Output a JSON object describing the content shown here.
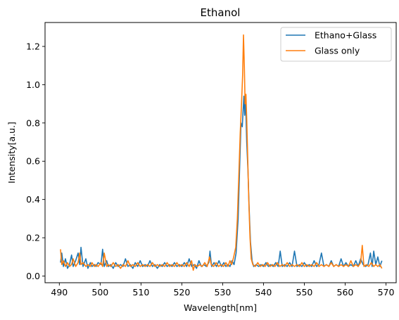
{
  "chart_data": {
    "type": "line",
    "title": "Ethanol",
    "xlabel": "Wavelength[nm]",
    "ylabel": "Intensity[a.u.]",
    "xlim": [
      486.5,
      572.5
    ],
    "ylim": [
      -0.035,
      1.325
    ],
    "xticks": [
      490,
      500,
      510,
      520,
      530,
      540,
      550,
      560,
      570
    ],
    "yticks": [
      0.0,
      0.2,
      0.4,
      0.6,
      0.8,
      1.0,
      1.2
    ],
    "xtick_labels": [
      "490",
      "500",
      "510",
      "520",
      "530",
      "540",
      "550",
      "560",
      "570"
    ],
    "ytick_labels": [
      "0.0",
      "0.2",
      "0.4",
      "0.6",
      "0.8",
      "1.0",
      "1.2"
    ],
    "legend_position": "top-right",
    "grid": false,
    "series": [
      {
        "name": "Ethano+Glass",
        "color": "#1f77b4",
        "points": [
          [
            490.3,
            0.07
          ],
          [
            490.6,
            0.12
          ],
          [
            491.0,
            0.05
          ],
          [
            491.5,
            0.09
          ],
          [
            492.0,
            0.04
          ],
          [
            492.5,
            0.06
          ],
          [
            493.0,
            0.11
          ],
          [
            493.4,
            0.05
          ],
          [
            494.0,
            0.08
          ],
          [
            494.6,
            0.12
          ],
          [
            495.0,
            0.06
          ],
          [
            495.3,
            0.15
          ],
          [
            495.8,
            0.05
          ],
          [
            496.5,
            0.09
          ],
          [
            497.0,
            0.04
          ],
          [
            497.6,
            0.07
          ],
          [
            498.0,
            0.05
          ],
          [
            498.6,
            0.06
          ],
          [
            499.0,
            0.05
          ],
          [
            499.5,
            0.07
          ],
          [
            500.2,
            0.06
          ],
          [
            500.6,
            0.14
          ],
          [
            501.0,
            0.05
          ],
          [
            501.6,
            0.08
          ],
          [
            502.0,
            0.05
          ],
          [
            502.6,
            0.06
          ],
          [
            503.2,
            0.04
          ],
          [
            503.8,
            0.07
          ],
          [
            504.4,
            0.05
          ],
          [
            505.0,
            0.06
          ],
          [
            505.6,
            0.05
          ],
          [
            506.2,
            0.09
          ],
          [
            506.8,
            0.05
          ],
          [
            507.4,
            0.06
          ],
          [
            508.0,
            0.04
          ],
          [
            508.6,
            0.07
          ],
          [
            509.2,
            0.05
          ],
          [
            509.8,
            0.08
          ],
          [
            510.4,
            0.05
          ],
          [
            511.0,
            0.06
          ],
          [
            511.6,
            0.05
          ],
          [
            512.2,
            0.08
          ],
          [
            512.8,
            0.05
          ],
          [
            513.4,
            0.06
          ],
          [
            514.0,
            0.04
          ],
          [
            514.6,
            0.06
          ],
          [
            515.2,
            0.05
          ],
          [
            515.8,
            0.07
          ],
          [
            516.4,
            0.05
          ],
          [
            517.0,
            0.06
          ],
          [
            517.6,
            0.05
          ],
          [
            518.2,
            0.07
          ],
          [
            518.8,
            0.05
          ],
          [
            519.4,
            0.06
          ],
          [
            520.0,
            0.05
          ],
          [
            520.6,
            0.07
          ],
          [
            521.2,
            0.05
          ],
          [
            521.8,
            0.09
          ],
          [
            522.4,
            0.05
          ],
          [
            523.0,
            0.06
          ],
          [
            523.6,
            0.04
          ],
          [
            524.2,
            0.08
          ],
          [
            524.8,
            0.05
          ],
          [
            525.4,
            0.06
          ],
          [
            526.0,
            0.05
          ],
          [
            526.6,
            0.07
          ],
          [
            526.9,
            0.13
          ],
          [
            527.3,
            0.05
          ],
          [
            527.9,
            0.07
          ],
          [
            528.5,
            0.05
          ],
          [
            529.1,
            0.08
          ],
          [
            529.7,
            0.05
          ],
          [
            530.3,
            0.07
          ],
          [
            530.8,
            0.05
          ],
          [
            531.3,
            0.06
          ],
          [
            531.8,
            0.05
          ],
          [
            532.3,
            0.08
          ],
          [
            532.8,
            0.06
          ],
          [
            533.3,
            0.12
          ],
          [
            533.8,
            0.3
          ],
          [
            534.2,
            0.6
          ],
          [
            534.5,
            0.8
          ],
          [
            534.8,
            0.78
          ],
          [
            535.0,
            0.86
          ],
          [
            535.2,
            0.94
          ],
          [
            535.4,
            0.84
          ],
          [
            535.6,
            0.93
          ],
          [
            535.9,
            0.7
          ],
          [
            536.2,
            0.55
          ],
          [
            536.5,
            0.35
          ],
          [
            536.8,
            0.18
          ],
          [
            537.2,
            0.08
          ],
          [
            537.6,
            0.05
          ],
          [
            538.2,
            0.06
          ],
          [
            538.8,
            0.05
          ],
          [
            539.4,
            0.06
          ],
          [
            540.0,
            0.05
          ],
          [
            540.6,
            0.07
          ],
          [
            541.2,
            0.05
          ],
          [
            541.8,
            0.06
          ],
          [
            542.4,
            0.05
          ],
          [
            543.0,
            0.07
          ],
          [
            543.6,
            0.05
          ],
          [
            544.1,
            0.13
          ],
          [
            544.6,
            0.05
          ],
          [
            545.2,
            0.06
          ],
          [
            545.8,
            0.05
          ],
          [
            546.4,
            0.07
          ],
          [
            547.0,
            0.05
          ],
          [
            547.6,
            0.13
          ],
          [
            548.2,
            0.05
          ],
          [
            548.8,
            0.06
          ],
          [
            549.4,
            0.05
          ],
          [
            550.0,
            0.07
          ],
          [
            550.6,
            0.05
          ],
          [
            551.2,
            0.06
          ],
          [
            551.8,
            0.05
          ],
          [
            552.4,
            0.08
          ],
          [
            553.0,
            0.05
          ],
          [
            553.6,
            0.06
          ],
          [
            554.2,
            0.12
          ],
          [
            554.8,
            0.05
          ],
          [
            555.4,
            0.06
          ],
          [
            556.0,
            0.05
          ],
          [
            556.6,
            0.08
          ],
          [
            557.2,
            0.05
          ],
          [
            557.8,
            0.06
          ],
          [
            558.4,
            0.05
          ],
          [
            559.0,
            0.09
          ],
          [
            559.6,
            0.05
          ],
          [
            560.2,
            0.07
          ],
          [
            560.8,
            0.05
          ],
          [
            561.4,
            0.06
          ],
          [
            562.0,
            0.05
          ],
          [
            562.6,
            0.08
          ],
          [
            563.2,
            0.05
          ],
          [
            563.8,
            0.09
          ],
          [
            564.4,
            0.06
          ],
          [
            565.0,
            0.05
          ],
          [
            565.6,
            0.06
          ],
          [
            566.2,
            0.12
          ],
          [
            566.6,
            0.05
          ],
          [
            567.0,
            0.13
          ],
          [
            567.5,
            0.06
          ],
          [
            568.0,
            0.1
          ],
          [
            568.5,
            0.05
          ],
          [
            569.0,
            0.08
          ]
        ]
      },
      {
        "name": "Glass only",
        "color": "#ff7f0e",
        "points": [
          [
            490.3,
            0.14
          ],
          [
            490.6,
            0.06
          ],
          [
            491.0,
            0.08
          ],
          [
            491.5,
            0.05
          ],
          [
            492.0,
            0.07
          ],
          [
            492.5,
            0.05
          ],
          [
            493.0,
            0.06
          ],
          [
            493.4,
            0.09
          ],
          [
            494.0,
            0.05
          ],
          [
            494.6,
            0.07
          ],
          [
            495.0,
            0.12
          ],
          [
            495.3,
            0.06
          ],
          [
            495.8,
            0.07
          ],
          [
            496.5,
            0.05
          ],
          [
            497.0,
            0.06
          ],
          [
            497.6,
            0.05
          ],
          [
            498.0,
            0.07
          ],
          [
            498.6,
            0.05
          ],
          [
            499.0,
            0.06
          ],
          [
            499.5,
            0.05
          ],
          [
            500.2,
            0.07
          ],
          [
            500.6,
            0.05
          ],
          [
            501.0,
            0.12
          ],
          [
            501.6,
            0.05
          ],
          [
            502.0,
            0.06
          ],
          [
            502.6,
            0.05
          ],
          [
            503.2,
            0.07
          ],
          [
            503.8,
            0.05
          ],
          [
            504.4,
            0.06
          ],
          [
            505.0,
            0.04
          ],
          [
            505.6,
            0.06
          ],
          [
            506.2,
            0.05
          ],
          [
            506.8,
            0.08
          ],
          [
            507.4,
            0.05
          ],
          [
            508.0,
            0.06
          ],
          [
            508.6,
            0.05
          ],
          [
            509.2,
            0.07
          ],
          [
            509.8,
            0.05
          ],
          [
            510.4,
            0.06
          ],
          [
            511.0,
            0.05
          ],
          [
            511.6,
            0.06
          ],
          [
            512.2,
            0.05
          ],
          [
            512.8,
            0.07
          ],
          [
            513.4,
            0.05
          ],
          [
            514.0,
            0.06
          ],
          [
            514.6,
            0.05
          ],
          [
            515.2,
            0.06
          ],
          [
            515.8,
            0.05
          ],
          [
            516.4,
            0.07
          ],
          [
            517.0,
            0.05
          ],
          [
            517.6,
            0.06
          ],
          [
            518.2,
            0.05
          ],
          [
            518.8,
            0.07
          ],
          [
            519.4,
            0.05
          ],
          [
            520.0,
            0.06
          ],
          [
            520.6,
            0.05
          ],
          [
            521.2,
            0.07
          ],
          [
            521.8,
            0.05
          ],
          [
            522.4,
            0.08
          ],
          [
            522.8,
            0.03
          ],
          [
            523.2,
            0.06
          ],
          [
            523.8,
            0.05
          ],
          [
            524.4,
            0.06
          ],
          [
            525.0,
            0.05
          ],
          [
            525.6,
            0.07
          ],
          [
            526.2,
            0.05
          ],
          [
            526.8,
            0.1
          ],
          [
            527.2,
            0.06
          ],
          [
            527.8,
            0.05
          ],
          [
            528.4,
            0.07
          ],
          [
            529.0,
            0.05
          ],
          [
            529.6,
            0.06
          ],
          [
            530.2,
            0.05
          ],
          [
            530.8,
            0.07
          ],
          [
            531.3,
            0.05
          ],
          [
            531.8,
            0.08
          ],
          [
            532.2,
            0.06
          ],
          [
            532.7,
            0.1
          ],
          [
            533.2,
            0.15
          ],
          [
            533.6,
            0.3
          ],
          [
            534.0,
            0.55
          ],
          [
            534.3,
            0.75
          ],
          [
            534.6,
            0.89
          ],
          [
            534.9,
            1.05
          ],
          [
            535.1,
            1.26
          ],
          [
            535.3,
            1.1
          ],
          [
            535.5,
            0.9
          ],
          [
            535.7,
            0.95
          ],
          [
            535.9,
            0.82
          ],
          [
            536.1,
            0.65
          ],
          [
            536.4,
            0.4
          ],
          [
            536.7,
            0.2
          ],
          [
            537.0,
            0.09
          ],
          [
            537.4,
            0.06
          ],
          [
            538.0,
            0.05
          ],
          [
            538.6,
            0.07
          ],
          [
            539.2,
            0.05
          ],
          [
            539.8,
            0.06
          ],
          [
            540.4,
            0.05
          ],
          [
            541.0,
            0.07
          ],
          [
            541.6,
            0.05
          ],
          [
            542.2,
            0.06
          ],
          [
            542.8,
            0.05
          ],
          [
            543.4,
            0.07
          ],
          [
            544.0,
            0.05
          ],
          [
            544.6,
            0.06
          ],
          [
            545.2,
            0.05
          ],
          [
            545.8,
            0.07
          ],
          [
            546.4,
            0.05
          ],
          [
            547.0,
            0.06
          ],
          [
            547.6,
            0.05
          ],
          [
            548.2,
            0.06
          ],
          [
            548.8,
            0.05
          ],
          [
            549.4,
            0.07
          ],
          [
            550.0,
            0.05
          ],
          [
            550.6,
            0.06
          ],
          [
            551.2,
            0.05
          ],
          [
            551.8,
            0.06
          ],
          [
            552.4,
            0.05
          ],
          [
            553.0,
            0.07
          ],
          [
            553.6,
            0.05
          ],
          [
            554.2,
            0.06
          ],
          [
            554.8,
            0.05
          ],
          [
            555.4,
            0.06
          ],
          [
            556.0,
            0.05
          ],
          [
            556.6,
            0.07
          ],
          [
            557.2,
            0.05
          ],
          [
            557.8,
            0.06
          ],
          [
            558.4,
            0.05
          ],
          [
            559.0,
            0.06
          ],
          [
            559.6,
            0.05
          ],
          [
            560.2,
            0.06
          ],
          [
            560.8,
            0.05
          ],
          [
            561.4,
            0.08
          ],
          [
            562.0,
            0.05
          ],
          [
            562.6,
            0.06
          ],
          [
            563.2,
            0.05
          ],
          [
            563.8,
            0.07
          ],
          [
            564.2,
            0.16
          ],
          [
            564.6,
            0.05
          ],
          [
            565.2,
            0.06
          ],
          [
            565.8,
            0.05
          ],
          [
            566.4,
            0.07
          ],
          [
            567.0,
            0.05
          ],
          [
            567.5,
            0.06
          ],
          [
            568.0,
            0.05
          ],
          [
            568.5,
            0.06
          ],
          [
            569.0,
            0.04
          ]
        ]
      }
    ]
  }
}
